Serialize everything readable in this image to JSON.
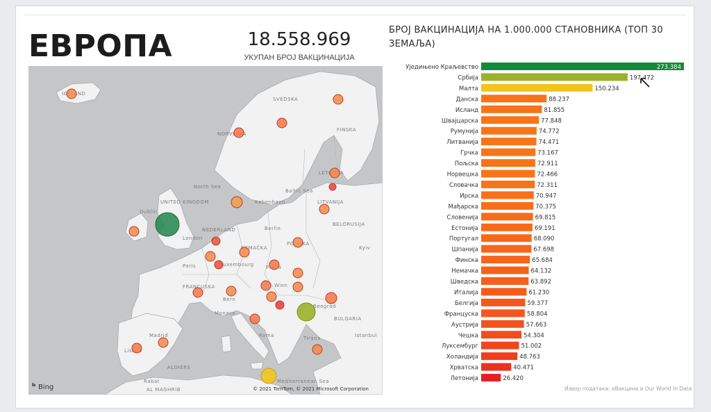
{
  "header": {
    "region_title": "ЕВРОПА",
    "kpi_value": "18.558.969",
    "kpi_label": "УКУПАН БРОЈ ВАКЦИНАЦИЈА"
  },
  "map": {
    "labels": [
      "ICELAND",
      "SVEDSKA",
      "FINSKA",
      "NORVEŠKA",
      "North Sea",
      "Baltic Sea",
      "København",
      "LETONIJA",
      "LITVANIJA",
      "UNITED KINGDOM",
      "Dublin",
      "London",
      "NEDERLAND",
      "Berlin",
      "POLJSKA",
      "BELORUSIJA",
      "Kyiv",
      "Paris",
      "FRANCUSKA",
      "NEMAČKA",
      "Luxembourg",
      "Praha",
      "Wien",
      "Bern",
      "Monaco",
      "Beograd",
      "Roma",
      "Madrid",
      "Lisboa",
      "Tirana",
      "BULGARIA",
      "Istanbul",
      "ALGIERS",
      "Mediterranean Sea",
      "Rabat",
      "AL MAGHRIB"
    ],
    "bing": "Bing",
    "copyright": "© 2021 TomTom, © 2021 Microsoft Corporation",
    "colors": {
      "water": "#c4c6c8",
      "land": "#f2f2f2",
      "border": "#a9abae"
    }
  },
  "chart_data": {
    "type": "bar",
    "orientation": "horizontal",
    "title": "БРОЈ ВАКЦИНАЦИЈА НА 1.000.000 СТАНОВНИКА (ТОП 30 ЗЕМАЉА)",
    "xlim": [
      0,
      273384
    ],
    "categories": [
      "Уједињено Краљевство",
      "Србија",
      "Малта",
      "Данска",
      "Исланд",
      "Швајцарска",
      "Румунија",
      "Литванија",
      "Грчка",
      "Пољска",
      "Норвешка",
      "Словачка",
      "Ирска",
      "Мађарска",
      "Словенија",
      "Естонија",
      "Португал",
      "Шпанија",
      "Финска",
      "Немачка",
      "Шведска",
      "Италија",
      "Белгија",
      "Француска",
      "Аустрија",
      "Чешка",
      "Луксембург",
      "Холандија",
      "Хрватска",
      "Летонија"
    ],
    "values": [
      273384,
      197472,
      150234,
      88237,
      81855,
      77848,
      74772,
      74471,
      73167,
      72911,
      72466,
      72311,
      70947,
      70375,
      69815,
      69191,
      68090,
      67698,
      65684,
      64132,
      63892,
      61230,
      59377,
      58804,
      57663,
      54304,
      51002,
      48763,
      40471,
      26420
    ],
    "value_labels": [
      "273.384",
      "197.472",
      "150.234",
      "88.237",
      "81.855",
      "77.848",
      "74.772",
      "74.471",
      "73.167",
      "72.911",
      "72.466",
      "72.311",
      "70.947",
      "70.375",
      "69.815",
      "69.191",
      "68.090",
      "67.698",
      "65.684",
      "64.132",
      "63.892",
      "61.230",
      "59.377",
      "58.804",
      "57.663",
      "54.304",
      "51.002",
      "48.763",
      "40.471",
      "26.420"
    ],
    "bar_colors": [
      "#138a3a",
      "#9cb12a",
      "#f2c51c",
      "#f87419",
      "#f87419",
      "#f87419",
      "#f87419",
      "#f87419",
      "#f87419",
      "#f87419",
      "#f87419",
      "#f87419",
      "#f8701a",
      "#f86e1a",
      "#f86c1a",
      "#f86a1a",
      "#f8681a",
      "#f7661b",
      "#f7641b",
      "#f7621b",
      "#f6601c",
      "#f55c1c",
      "#f5581d",
      "#f4561d",
      "#f3521e",
      "#f24c1f",
      "#f0461f",
      "#ee3f20",
      "#ea3221",
      "#e81f22"
    ],
    "gridlines": false,
    "legend": "none"
  },
  "source_note": "Извор података: еВакцина и Our World In Data",
  "cursor": "arrow-cursor-icon"
}
